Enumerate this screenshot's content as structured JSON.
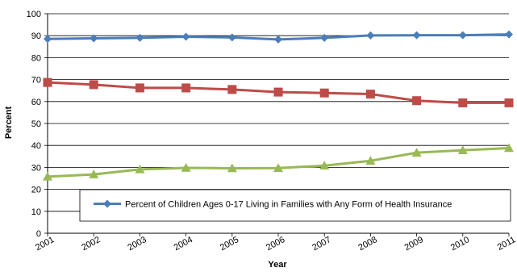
{
  "chart_data": {
    "type": "line",
    "xlabel": "Year",
    "ylabel": "Percent",
    "ylim": [
      0,
      100
    ],
    "yticks": [
      "0",
      "10",
      "20",
      "30",
      "40",
      "50",
      "60",
      "70",
      "80",
      "90",
      "100"
    ],
    "categories": [
      "2001",
      "2002",
      "2003",
      "2004",
      "2005",
      "2006",
      "2007",
      "2008",
      "2009",
      "2010",
      "2011"
    ],
    "grid": "horizontal",
    "series": [
      {
        "name": "Percent of Children Ages 0-17 Living in Families with Any Form of Health Insurance",
        "color": "#4A7EBB",
        "marker": "diamond",
        "values": [
          88.5,
          88.8,
          89.0,
          89.5,
          89.2,
          88.3,
          89.0,
          90.1,
          90.2,
          90.2,
          90.6
        ]
      },
      {
        "color": "#BE4B48",
        "marker": "square",
        "values": [
          68.7,
          67.7,
          66.2,
          66.2,
          65.5,
          64.3,
          63.9,
          63.4,
          60.4,
          59.4,
          59.4
        ]
      },
      {
        "color": "#98B954",
        "marker": "triangle",
        "values": [
          25.8,
          26.8,
          29.1,
          29.8,
          29.6,
          29.7,
          30.8,
          33.0,
          36.7,
          37.8,
          38.8
        ]
      }
    ],
    "legend": {
      "placement": "bottom-center",
      "entries": [
        "Percent of Children Ages 0-17 Living in Families with Any Form of Health Insurance"
      ]
    }
  }
}
